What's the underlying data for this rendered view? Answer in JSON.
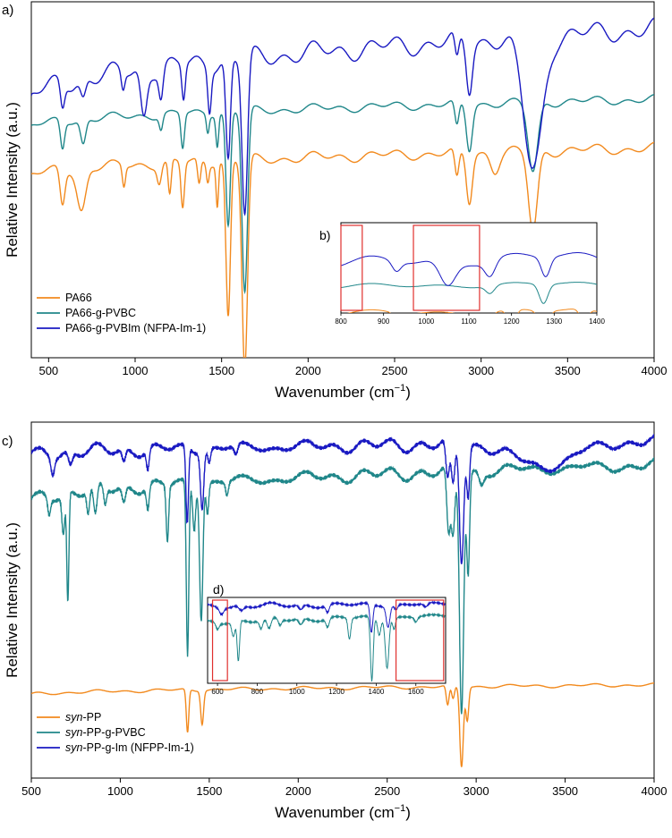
{
  "colors": {
    "PA66": "#F28A1E",
    "PVBC": "#20878A",
    "Im": "#1A1AC2",
    "highlight": "#E0302E",
    "axis": "#000000"
  },
  "chart_data": [
    {
      "panel_label": "a)",
      "type": "line",
      "xlabel_main": "Wavenumber (cm",
      "xlabel_sup": "−1",
      "xlabel_close": ")",
      "ylabel": "Relative Intensity (a.u.)",
      "xlim": [
        400,
        4000
      ],
      "x_ticks": [
        "500",
        "1000",
        "1500",
        "2000",
        "2500",
        "3000",
        "3500",
        "4000"
      ],
      "grid": false,
      "legend_position": "bottom-left",
      "series": [
        {
          "name": "PA66",
          "color_key": "PA66",
          "offset": 0.0,
          "base": 0.52,
          "end": 0.6,
          "ripple": 0.018,
          "noisy": false,
          "peaks": [
            [
              580,
              0.1,
              14
            ],
            [
              690,
              0.12,
              25
            ],
            [
              935,
              0.06,
              9
            ],
            [
              1140,
              0.05,
              12
            ],
            [
              1200,
              0.1,
              9
            ],
            [
              1275,
              0.13,
              10
            ],
            [
              1370,
              0.07,
              9
            ],
            [
              1420,
              0.05,
              8
            ],
            [
              1475,
              0.12,
              7
            ],
            [
              1538,
              0.45,
              13
            ],
            [
              1634,
              0.6,
              16
            ],
            [
              2860,
              0.08,
              12
            ],
            [
              2932,
              0.14,
              17
            ],
            [
              3080,
              0.05,
              25
            ],
            [
              3300,
              0.23,
              26
            ]
          ]
        },
        {
          "name": "PA66-g-PVBC",
          "color_key": "PVBC",
          "offset": 0.14,
          "base": 0.52,
          "end": 0.6,
          "ripple": 0.015,
          "noisy": false,
          "peaks": [
            [
              580,
              0.08,
              12
            ],
            [
              700,
              0.07,
              15
            ],
            [
              1150,
              0.04,
              10
            ],
            [
              1275,
              0.1,
              10
            ],
            [
              1420,
              0.05,
              8
            ],
            [
              1475,
              0.09,
              8
            ],
            [
              1538,
              0.33,
              13
            ],
            [
              1634,
              0.52,
              16
            ],
            [
              2860,
              0.07,
              12
            ],
            [
              2932,
              0.13,
              17
            ],
            [
              3300,
              0.2,
              28
            ]
          ]
        },
        {
          "name": "PA66-g-PVBIm (NFPA-Im-1)",
          "color_key": "Im",
          "offset": 0.34,
          "base": 0.4,
          "end": 0.6,
          "ripple": 0.035,
          "noisy": false,
          "peaks": [
            [
              580,
              0.07,
              12
            ],
            [
              700,
              0.05,
              15
            ],
            [
              930,
              0.05,
              10
            ],
            [
              1050,
              0.13,
              18
            ],
            [
              1150,
              0.08,
              12
            ],
            [
              1280,
              0.1,
              10
            ],
            [
              1430,
              0.12,
              10
            ],
            [
              1538,
              0.29,
              13
            ],
            [
              1634,
              0.45,
              16
            ],
            [
              2860,
              0.07,
              12
            ],
            [
              2932,
              0.14,
              17
            ],
            [
              3300,
              0.38,
              55
            ]
          ]
        }
      ],
      "inset": {
        "label": "b)",
        "xlim": [
          800,
          1400
        ],
        "x_ticks": [
          "800",
          "900",
          "1000",
          "1100",
          "1200",
          "1300",
          "1400"
        ],
        "highlight_ranges": [
          [
            800,
            850
          ],
          [
            970,
            1125
          ]
        ]
      }
    },
    {
      "panel_label": "c)",
      "type": "line",
      "xlabel_main": "Wavenumber (cm",
      "xlabel_sup": "−1",
      "xlabel_close": ")",
      "ylabel": "Relative Intensity (a.u.)",
      "xlim": [
        500,
        4000
      ],
      "x_ticks": [
        "500",
        "1000",
        "1500",
        "2000",
        "2500",
        "3000",
        "3500",
        "4000"
      ],
      "grid": false,
      "legend_position": "bottom-left",
      "series": [
        {
          "name": "syn-PP",
          "name_italic": "syn",
          "name_rest": "-PP",
          "color_key": "PA66",
          "offset": 0.0,
          "base": 0.2,
          "end": 0.23,
          "ripple": 0.006,
          "noisy": false,
          "peaks": [
            [
              1378,
              0.13,
              7
            ],
            [
              1460,
              0.1,
              8
            ],
            [
              2840,
              0.06,
              8
            ],
            [
              2870,
              0.04,
              8
            ],
            [
              2918,
              0.24,
              10
            ],
            [
              2950,
              0.1,
              8
            ]
          ]
        },
        {
          "name": "syn-PP-g-PVBC",
          "name_italic": "syn",
          "name_rest": "-PP-g-PVBC",
          "color_key": "PVBC",
          "offset": 0.0,
          "base": 0.78,
          "end": 0.89,
          "ripple": 0.02,
          "noisy": true,
          "peaks": [
            [
              600,
              0.05,
              8
            ],
            [
              680,
              0.12,
              8
            ],
            [
              705,
              0.33,
              6
            ],
            [
              820,
              0.07,
              8
            ],
            [
              860,
              0.09,
              10
            ],
            [
              915,
              0.05,
              8
            ],
            [
              1020,
              0.05,
              10
            ],
            [
              1155,
              0.07,
              8
            ],
            [
              1265,
              0.17,
              7
            ],
            [
              1378,
              0.52,
              7
            ],
            [
              1415,
              0.13,
              8
            ],
            [
              1455,
              0.4,
              9
            ],
            [
              1490,
              0.09,
              7
            ],
            [
              1600,
              0.04,
              8
            ],
            [
              2845,
              0.2,
              10
            ],
            [
              2870,
              0.2,
              10
            ],
            [
              2918,
              0.72,
              12
            ],
            [
              2955,
              0.3,
              8
            ],
            [
              3030,
              0.04,
              14
            ]
          ]
        },
        {
          "name": "syn-PP-g-Im (NFPP-Im-1)",
          "name_italic": "syn",
          "name_rest": "-PP-g-Im (NFPP-Im-1)",
          "color_key": "Im",
          "offset": 0.0,
          "base": 0.92,
          "end": 0.96,
          "ripple": 0.02,
          "noisy": true,
          "peaks": [
            [
              620,
              0.05,
              10
            ],
            [
              720,
              0.04,
              12
            ],
            [
              1020,
              0.04,
              10
            ],
            [
              1155,
              0.06,
              8
            ],
            [
              1376,
              0.23,
              7
            ],
            [
              1460,
              0.17,
              9
            ],
            [
              1500,
              0.04,
              8
            ],
            [
              1650,
              0.03,
              10
            ],
            [
              2840,
              0.12,
              10
            ],
            [
              2870,
              0.13,
              10
            ],
            [
              2918,
              0.35,
              12
            ],
            [
              2955,
              0.15,
              8
            ],
            [
              3380,
              0.07,
              160
            ]
          ]
        }
      ],
      "inset": {
        "label": "d)",
        "xlim": [
          550,
          1750
        ],
        "x_ticks": [
          "600",
          "800",
          "1000",
          "1200",
          "1400",
          "1600"
        ],
        "highlight_ranges": [
          [
            575,
            650
          ],
          [
            1500,
            1740
          ]
        ]
      }
    }
  ]
}
